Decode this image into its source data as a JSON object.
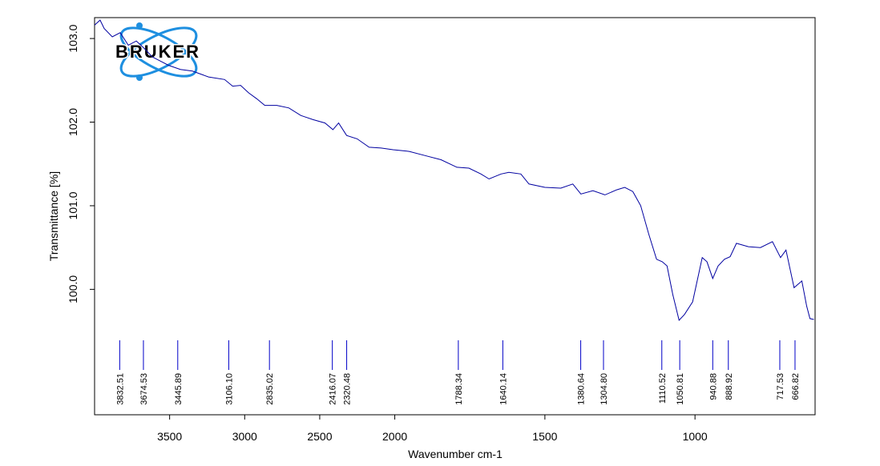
{
  "chart_data": {
    "type": "line",
    "logo": "BRUKER",
    "x_label": "Wavenumber cm-1",
    "y_label": "Transmittance [%]",
    "xlim": [
      4000,
      600
    ],
    "x_break": 2000,
    "xticks": [
      3500,
      3000,
      2500,
      2000,
      1500,
      1000
    ],
    "ylim": [
      98.5,
      103.25
    ],
    "yticks": [
      {
        "value": 100,
        "label": "100.0"
      },
      {
        "value": 101,
        "label": "101.0"
      },
      {
        "value": 102,
        "label": "102.0"
      },
      {
        "value": 103,
        "label": "103.0"
      }
    ],
    "color": "#0000a0",
    "peak_color": "#0000c8",
    "x": [
      4000,
      3963,
      3936,
      3882,
      3829,
      3775,
      3722,
      3668,
      3615,
      3561,
      3508,
      3428,
      3348,
      3241,
      3134,
      3080,
      3027,
      2973,
      2920,
      2866,
      2786,
      2706,
      2626,
      2545,
      2465,
      2412,
      2374,
      2321,
      2251,
      2171,
      2091,
      2011,
      1952,
      1899,
      1846,
      1793,
      1753,
      1713,
      1686,
      1646,
      1620,
      1580,
      1553,
      1500,
      1447,
      1407,
      1380,
      1340,
      1300,
      1261,
      1234,
      1207,
      1181,
      1154,
      1128,
      1109,
      1093,
      1074,
      1053,
      1035,
      1008,
      976,
      960,
      941,
      923,
      902,
      883,
      862,
      822,
      782,
      742,
      715,
      697,
      670,
      644,
      628,
      617,
      604
    ],
    "values": [
      103.16,
      103.22,
      103.12,
      103.02,
      103.07,
      102.92,
      102.97,
      102.88,
      102.78,
      102.73,
      102.68,
      102.63,
      102.61,
      102.54,
      102.51,
      102.43,
      102.44,
      102.35,
      102.28,
      102.2,
      102.2,
      102.17,
      102.08,
      102.03,
      101.99,
      101.91,
      101.99,
      101.84,
      101.8,
      101.7,
      101.69,
      101.67,
      101.65,
      101.6,
      101.55,
      101.46,
      101.45,
      101.38,
      101.32,
      101.38,
      101.4,
      101.38,
      101.26,
      101.22,
      101.21,
      101.26,
      101.14,
      101.18,
      101.13,
      101.19,
      101.22,
      101.17,
      101.0,
      100.66,
      100.36,
      100.33,
      100.28,
      99.94,
      99.63,
      99.7,
      99.85,
      100.38,
      100.33,
      100.13,
      100.28,
      100.36,
      100.39,
      100.55,
      100.51,
      100.5,
      100.57,
      100.38,
      100.47,
      100.02,
      100.1,
      99.8,
      99.65,
      99.64
    ],
    "peaks": [
      3832.51,
      3674.53,
      3445.89,
      {
        "value": 3106.1,
        "label": "3106.10"
      },
      2835.02,
      2416.07,
      2320.48,
      1788.34,
      1640.14,
      1380.64,
      {
        "value": 1304.8,
        "label": "1304.80"
      },
      1110.52,
      1050.81,
      940.88,
      888.92,
      717.53,
      666.82
    ]
  }
}
